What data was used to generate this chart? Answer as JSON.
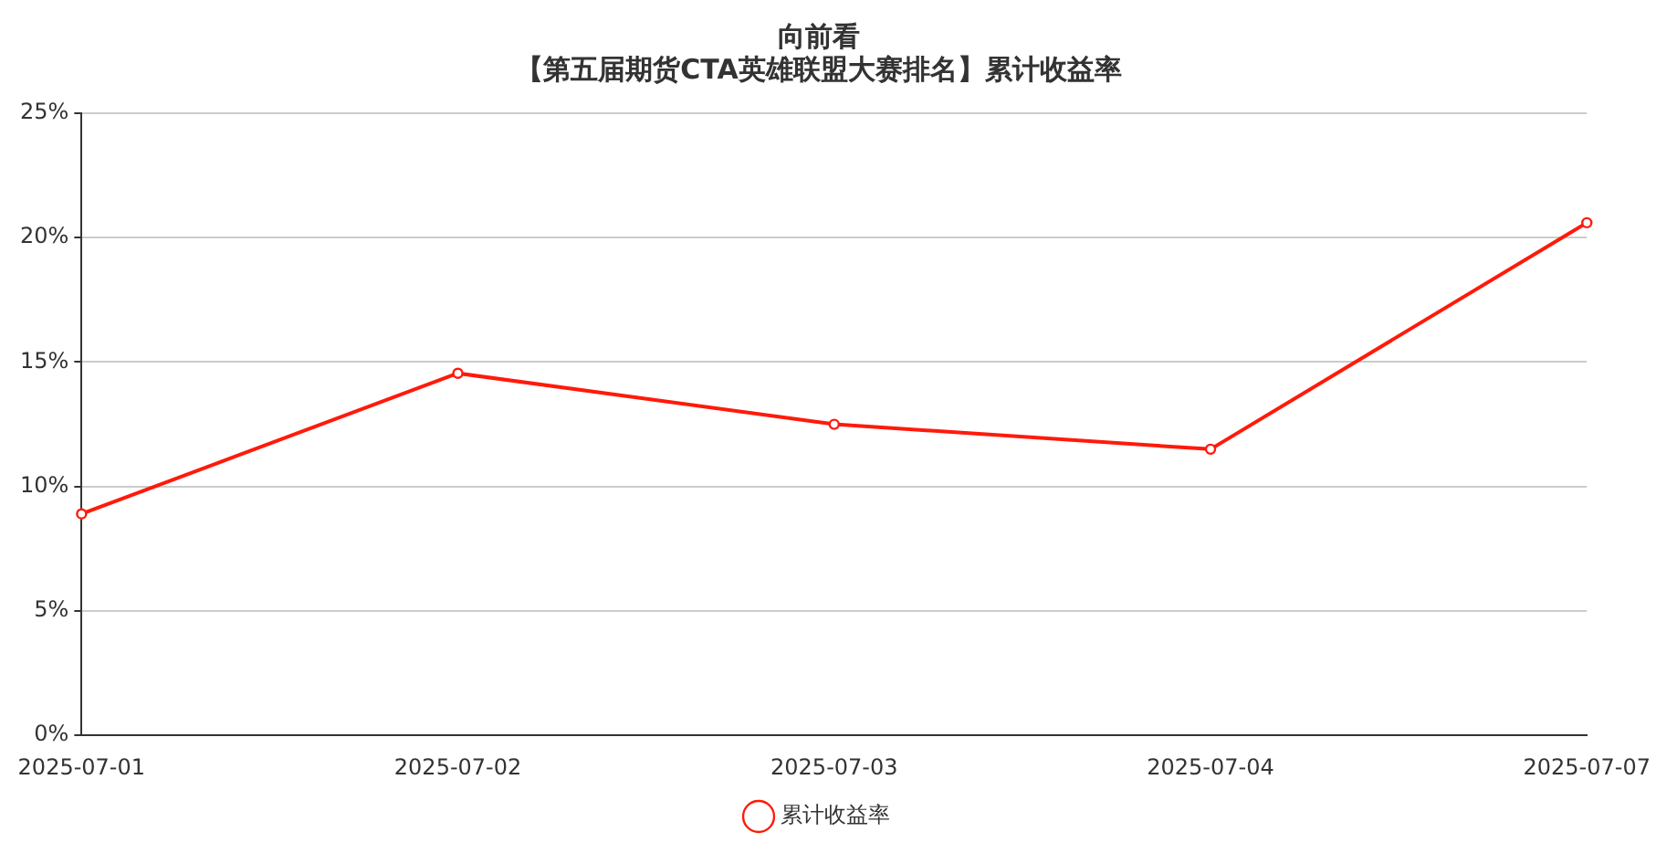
{
  "chart_data": {
    "type": "line",
    "title": "向前看",
    "subtitle": "【第五届期货CTA英雄联盟大赛排名】累计收益率",
    "categories": [
      "2025-07-01",
      "2025-07-02",
      "2025-07-03",
      "2025-07-04",
      "2025-07-07"
    ],
    "series": [
      {
        "name": "累计收益率",
        "color": "#ff1a0a",
        "values": [
          8.9,
          14.55,
          12.5,
          11.5,
          20.6
        ]
      }
    ],
    "ylim": [
      0,
      25
    ],
    "yticks": [
      {
        "value": 0,
        "label": "0%"
      },
      {
        "value": 5,
        "label": "5%"
      },
      {
        "value": 10,
        "label": "10%"
      },
      {
        "value": 15,
        "label": "15%"
      },
      {
        "value": 20,
        "label": "20%"
      },
      {
        "value": 25,
        "label": "25%"
      }
    ],
    "grid": "y",
    "legend": "bottom",
    "marker": "circle",
    "line_style": "solid"
  }
}
